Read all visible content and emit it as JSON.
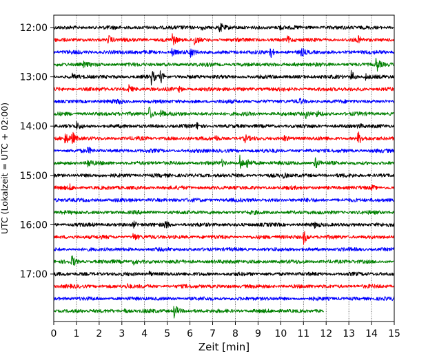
{
  "chart_data": {
    "type": "line",
    "title": "",
    "xlabel": "Zeit  [min]",
    "ylabel": "UTC (Lokalzeit = UTC + 02:00)",
    "xlim": [
      0,
      15
    ],
    "x_ticks": [
      "0",
      "1",
      "2",
      "3",
      "4",
      "5",
      "6",
      "7",
      "8",
      "9",
      "10",
      "11",
      "12",
      "13",
      "14",
      "15"
    ],
    "y_ticks": [
      {
        "label": "12:00",
        "trace": 0
      },
      {
        "label": "13:00",
        "trace": 4
      },
      {
        "label": "14:00",
        "trace": 8
      },
      {
        "label": "15:00",
        "trace": 12
      },
      {
        "label": "16:00",
        "trace": 16
      },
      {
        "label": "17:00",
        "trace": 20
      }
    ],
    "grid": "vertical dotted at each minute",
    "trace_interval_min": 15,
    "colors_cycle": [
      "#000000",
      "#ff0000",
      "#0000ff",
      "#008000"
    ],
    "traces": [
      {
        "start": "12:00",
        "color": "#000000",
        "end_min": 15,
        "events": [
          {
            "t": 7.3,
            "amp": 0.8
          },
          {
            "t": 6.5,
            "amp": 0.5
          },
          {
            "t": 9.9,
            "amp": 0.5
          }
        ]
      },
      {
        "start": "12:15",
        "color": "#ff0000",
        "end_min": 15,
        "events": [
          {
            "t": 2.4,
            "amp": 0.8
          },
          {
            "t": 5.2,
            "amp": 1.2
          },
          {
            "t": 6.2,
            "amp": 0.9
          },
          {
            "t": 10.3,
            "amp": 0.5
          },
          {
            "t": 13.4,
            "amp": 0.5
          }
        ]
      },
      {
        "start": "12:30",
        "color": "#0000ff",
        "end_min": 15,
        "events": [
          {
            "t": 5.2,
            "amp": 0.6
          },
          {
            "t": 6.0,
            "amp": 0.9
          },
          {
            "t": 9.5,
            "amp": 1.4
          },
          {
            "t": 10.9,
            "amp": 0.6
          }
        ]
      },
      {
        "start": "12:45",
        "color": "#008000",
        "end_min": 15,
        "events": [
          {
            "t": 1.3,
            "amp": 0.4
          },
          {
            "t": 14.2,
            "amp": 1.4
          },
          {
            "t": 10.6,
            "amp": 0.4
          }
        ]
      },
      {
        "start": "13:00",
        "color": "#000000",
        "end_min": 15,
        "events": [
          {
            "t": 0.8,
            "amp": 0.4
          },
          {
            "t": 4.3,
            "amp": 1.2
          },
          {
            "t": 4.7,
            "amp": 1.0
          },
          {
            "t": 13.1,
            "amp": 1.1
          },
          {
            "t": 13.7,
            "amp": 0.6
          }
        ]
      },
      {
        "start": "13:15",
        "color": "#ff0000",
        "end_min": 15,
        "events": [
          {
            "t": 3.3,
            "amp": 0.6
          },
          {
            "t": 5.5,
            "amp": 0.4
          }
        ]
      },
      {
        "start": "13:30",
        "color": "#0000ff",
        "end_min": 15,
        "events": [
          {
            "t": 2.8,
            "amp": 0.4
          },
          {
            "t": 10.8,
            "amp": 0.5
          }
        ]
      },
      {
        "start": "13:45",
        "color": "#008000",
        "end_min": 15,
        "events": [
          {
            "t": 4.2,
            "amp": 1.3
          },
          {
            "t": 4.7,
            "amp": 0.8
          },
          {
            "t": 11.1,
            "amp": 0.7
          },
          {
            "t": 11.6,
            "amp": 0.5
          }
        ]
      },
      {
        "start": "14:00",
        "color": "#000000",
        "end_min": 15,
        "events": [
          {
            "t": 6.3,
            "amp": 0.5
          },
          {
            "t": 13.4,
            "amp": 0.5
          },
          {
            "t": 1.0,
            "amp": 0.5
          }
        ]
      },
      {
        "start": "14:15",
        "color": "#ff0000",
        "end_min": 15,
        "events": [
          {
            "t": 0.5,
            "amp": 1.0
          },
          {
            "t": 0.8,
            "amp": 1.2
          },
          {
            "t": 7.1,
            "amp": 0.5
          },
          {
            "t": 8.4,
            "amp": 0.6
          },
          {
            "t": 10.1,
            "amp": 0.6
          },
          {
            "t": 13.4,
            "amp": 1.1
          }
        ]
      },
      {
        "start": "14:30",
        "color": "#0000ff",
        "end_min": 15,
        "events": [
          {
            "t": 1.5,
            "amp": 0.5
          }
        ]
      },
      {
        "start": "14:45",
        "color": "#008000",
        "end_min": 15,
        "events": [
          {
            "t": 1.5,
            "amp": 0.8
          },
          {
            "t": 8.2,
            "amp": 1.2
          },
          {
            "t": 8.5,
            "amp": 0.9
          },
          {
            "t": 11.5,
            "amp": 1.1
          },
          {
            "t": 7.4,
            "amp": 0.4
          }
        ]
      },
      {
        "start": "15:00",
        "color": "#000000",
        "end_min": 15,
        "events": [
          {
            "t": 10.1,
            "amp": 0.4
          }
        ]
      },
      {
        "start": "15:15",
        "color": "#ff0000",
        "end_min": 15,
        "events": [
          {
            "t": 0.7,
            "amp": 0.4
          },
          {
            "t": 14.0,
            "amp": 0.4
          }
        ]
      },
      {
        "start": "15:30",
        "color": "#0000ff",
        "end_min": 15,
        "events": []
      },
      {
        "start": "15:45",
        "color": "#008000",
        "end_min": 15,
        "events": []
      },
      {
        "start": "16:00",
        "color": "#000000",
        "end_min": 15,
        "events": [
          {
            "t": 3.5,
            "amp": 0.5
          },
          {
            "t": 4.9,
            "amp": 0.9
          },
          {
            "t": 11.5,
            "amp": 0.4
          }
        ]
      },
      {
        "start": "16:15",
        "color": "#ff0000",
        "end_min": 15,
        "events": [
          {
            "t": 3.5,
            "amp": 0.7
          },
          {
            "t": 11.0,
            "amp": 1.3
          }
        ]
      },
      {
        "start": "16:30",
        "color": "#0000ff",
        "end_min": 15,
        "events": []
      },
      {
        "start": "16:45",
        "color": "#008000",
        "end_min": 15,
        "events": [
          {
            "t": 0.8,
            "amp": 1.1
          },
          {
            "t": 3.5,
            "amp": 0.4
          }
        ]
      },
      {
        "start": "17:00",
        "color": "#000000",
        "end_min": 15,
        "events": [
          {
            "t": 4.2,
            "amp": 0.4
          }
        ]
      },
      {
        "start": "17:15",
        "color": "#ff0000",
        "end_min": 15,
        "events": [
          {
            "t": 3.2,
            "amp": 0.4
          }
        ]
      },
      {
        "start": "17:30",
        "color": "#0000ff",
        "end_min": 15,
        "events": []
      },
      {
        "start": "17:45",
        "color": "#008000",
        "end_min": 11.9,
        "events": [
          {
            "t": 5.3,
            "amp": 1.4
          },
          {
            "t": 3.1,
            "amp": 0.4
          }
        ]
      }
    ]
  }
}
